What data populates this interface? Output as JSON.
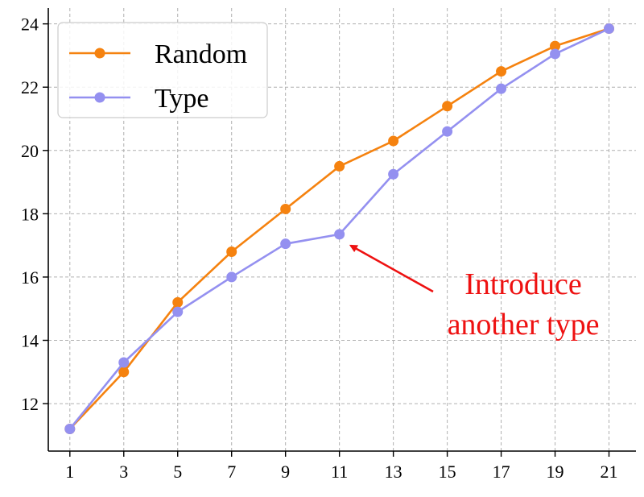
{
  "chart_data": {
    "type": "line",
    "title": "",
    "xlabel": "",
    "ylabel": "",
    "x": [
      1,
      3,
      5,
      7,
      9,
      11,
      13,
      15,
      17,
      19,
      21
    ],
    "xticks": [
      1,
      3,
      5,
      7,
      9,
      11,
      13,
      15,
      17,
      19,
      21
    ],
    "xlim": [
      0.2,
      22.0
    ],
    "yticks": [
      12,
      14,
      16,
      18,
      20,
      22,
      24
    ],
    "ylim": [
      10.5,
      24.5
    ],
    "grid": true,
    "legend_position": "top-left",
    "series": [
      {
        "name": "Random",
        "color": "#f5820f",
        "values": [
          11.2,
          13.0,
          15.2,
          16.8,
          18.15,
          19.5,
          20.3,
          21.4,
          22.5,
          23.3,
          23.85
        ]
      },
      {
        "name": "Type",
        "color": "#9490f0",
        "values": [
          11.2,
          13.3,
          14.9,
          16.0,
          17.05,
          17.35,
          19.25,
          20.6,
          21.95,
          23.05,
          23.85
        ]
      }
    ],
    "annotation": {
      "lines": [
        "Introduce",
        "another type"
      ],
      "color": "#ee1111",
      "points_to": {
        "x": 11,
        "y": 17.35
      }
    }
  }
}
